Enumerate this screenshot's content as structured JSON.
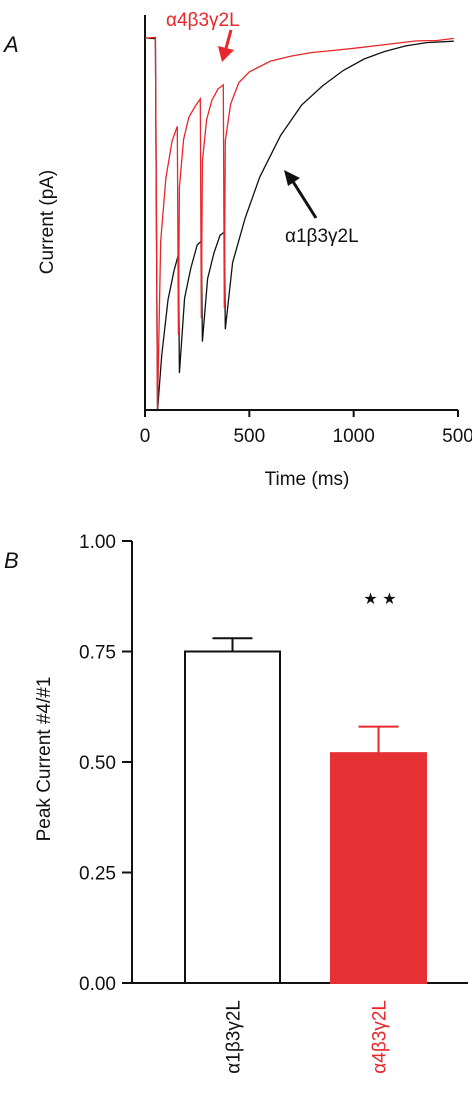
{
  "colors": {
    "red": "#e8262b",
    "black": "#111111",
    "bar_red": "#e53034"
  },
  "chart_data": [
    {
      "panel": "A",
      "type": "line",
      "xlabel": "Time (ms)",
      "ylabel": "Current (pA)",
      "xticks": [
        "0",
        "500",
        "1000",
        "500"
      ],
      "xlim": [
        0,
        1500
      ],
      "series": [
        {
          "name": "α4β3γ2L",
          "color": "#e8262b",
          "pulses_ms": [
            50,
            160,
            270,
            380
          ],
          "x": [
            0,
            50,
            60,
            75,
            100,
            130,
            155,
            160,
            165,
            185,
            210,
            240,
            265,
            270,
            275,
            295,
            320,
            350,
            375,
            380,
            385,
            410,
            450,
            500,
            600,
            700,
            800,
            900,
            1000,
            1100,
            1200,
            1300,
            1400,
            1480
          ],
          "y": [
            1.0,
            1.0,
            0.0,
            0.45,
            0.62,
            0.72,
            0.76,
            0.2,
            0.6,
            0.73,
            0.79,
            0.82,
            0.84,
            0.25,
            0.67,
            0.78,
            0.83,
            0.86,
            0.87,
            0.27,
            0.72,
            0.82,
            0.88,
            0.91,
            0.94,
            0.955,
            0.965,
            0.97,
            0.975,
            0.98,
            0.985,
            0.99,
            0.99,
            0.995
          ]
        },
        {
          "name": "α1β3γ2L",
          "color": "#111111",
          "pulses_ms": [
            50,
            160,
            270,
            380
          ],
          "x": [
            0,
            50,
            60,
            80,
            110,
            140,
            160,
            165,
            190,
            220,
            250,
            270,
            275,
            300,
            330,
            360,
            380,
            385,
            420,
            480,
            550,
            650,
            750,
            850,
            950,
            1050,
            1150,
            1250,
            1350,
            1480
          ],
          "y": [
            1.0,
            1.0,
            0.0,
            0.15,
            0.3,
            0.38,
            0.42,
            0.1,
            0.3,
            0.38,
            0.44,
            0.45,
            0.18,
            0.35,
            0.42,
            0.47,
            0.48,
            0.22,
            0.4,
            0.52,
            0.63,
            0.74,
            0.82,
            0.87,
            0.91,
            0.94,
            0.96,
            0.975,
            0.985,
            0.99
          ]
        }
      ]
    },
    {
      "panel": "B",
      "type": "bar",
      "ylabel": "Peak Current #4/#1",
      "ylim": [
        0,
        1.0
      ],
      "yticks": [
        "0.00",
        "0.25",
        "0.50",
        "0.75",
        "1.00"
      ],
      "categories": [
        "α1β3γ2L",
        "α4β3γ2L"
      ],
      "values": [
        0.75,
        0.52
      ],
      "errors": [
        0.03,
        0.06
      ],
      "annotation": "★ ★"
    }
  ]
}
